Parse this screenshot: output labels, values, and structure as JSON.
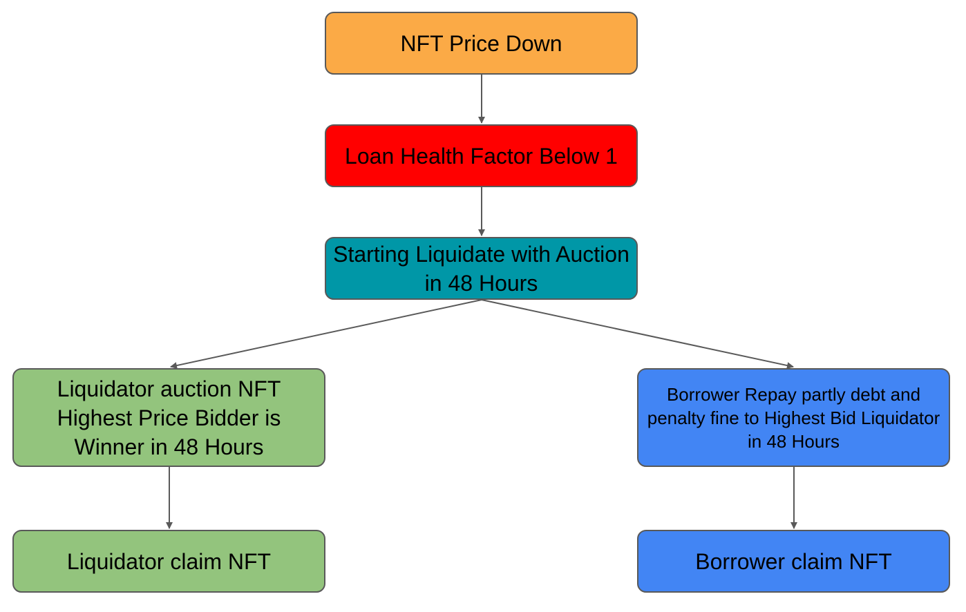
{
  "diagram": {
    "nodes": {
      "price_down": {
        "label": "NFT Price Down",
        "color": "#FBAA46"
      },
      "health": {
        "label": "Loan Health Factor Below 1",
        "color": "#FF0000"
      },
      "auction": {
        "label": "Starting Liquidate with Auction in 48 Hours",
        "color": "#0097A7"
      },
      "liq_bid": {
        "label": "Liquidator auction NFT Highest Price Bidder is Winner in 48 Hours",
        "color": "#93C47D"
      },
      "repay": {
        "label": "Borrower Repay partly debt and penalty fine to Highest Bid Liquidator in 48 Hours",
        "color": "#4285F4"
      },
      "liq_claim": {
        "label": "Liquidator claim NFT",
        "color": "#93C47D"
      },
      "bor_claim": {
        "label": "Borrower claim NFT",
        "color": "#4285F4"
      }
    },
    "edges": [
      {
        "from": "price_down",
        "to": "health"
      },
      {
        "from": "health",
        "to": "auction"
      },
      {
        "from": "auction",
        "to": "liq_bid"
      },
      {
        "from": "auction",
        "to": "repay"
      },
      {
        "from": "liq_bid",
        "to": "liq_claim"
      },
      {
        "from": "repay",
        "to": "bor_claim"
      }
    ],
    "edge_color": "#595959"
  }
}
